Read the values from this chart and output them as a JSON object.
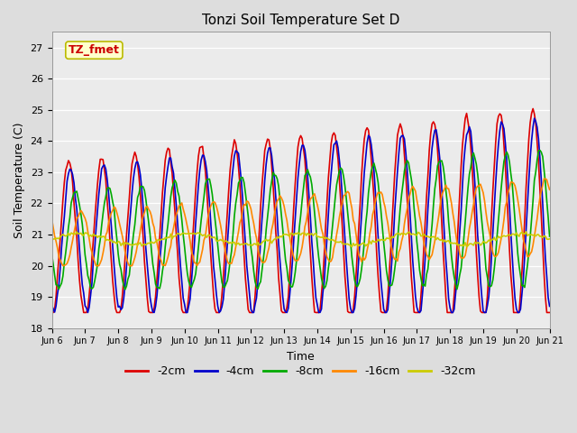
{
  "title": "Tonzi Soil Temperature Set D",
  "xlabel": "Time",
  "ylabel": "Soil Temperature (C)",
  "ylim": [
    18.0,
    27.5
  ],
  "yticks": [
    18.0,
    19.0,
    20.0,
    21.0,
    22.0,
    23.0,
    24.0,
    25.0,
    26.0,
    27.0
  ],
  "bg_color": "#dddddd",
  "plot_bg_color": "#ebebeb",
  "annotation_text": "TZ_fmet",
  "annotation_color": "#cc0000",
  "annotation_bg": "#ffffcc",
  "annotation_border": "#bbbb00",
  "series": [
    {
      "label": "-2cm",
      "color": "#dd0000",
      "lw": 1.2
    },
    {
      "label": "-4cm",
      "color": "#0000cc",
      "lw": 1.2
    },
    {
      "label": "-8cm",
      "color": "#00aa00",
      "lw": 1.2
    },
    {
      "label": "-16cm",
      "color": "#ff8800",
      "lw": 1.2
    },
    {
      "label": "-32cm",
      "color": "#cccc00",
      "lw": 1.2
    }
  ],
  "x_tick_labels": [
    "Jun 6",
    "Jun 7",
    "Jun 8",
    "Jun 9",
    "Jun 10",
    "Jun 11",
    "Jun 12",
    "Jun 13",
    "Jun 14",
    "Jun 15",
    "Jun 16",
    "Jun 17",
    "Jun 18",
    "Jun 19",
    "Jun 20",
    "Jun 21"
  ],
  "n_points": 361,
  "days": 15,
  "figwidth": 6.4,
  "figheight": 4.8,
  "dpi": 100
}
